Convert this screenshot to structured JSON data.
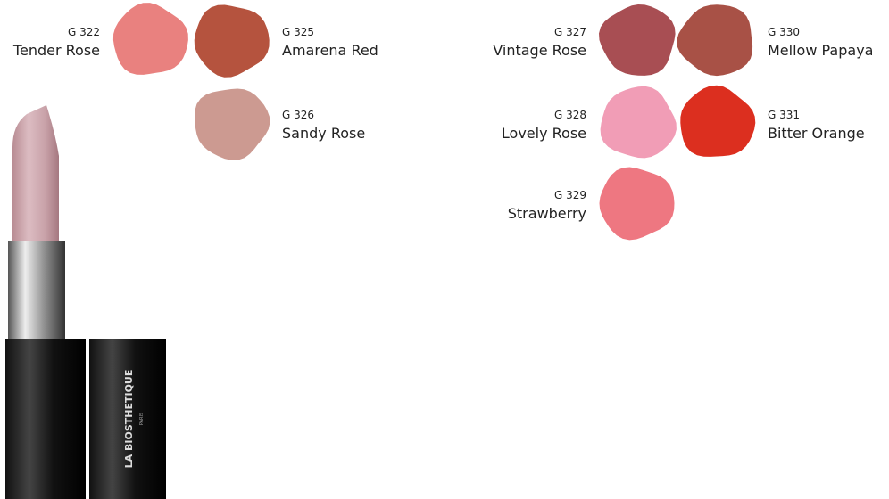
{
  "swatches": [
    {
      "code": "G 322",
      "name": "Tender Rose",
      "color": "#e9817f"
    },
    {
      "code": "G 325",
      "name": "Amarena Red",
      "color": "#b5533e"
    },
    {
      "code": "G 326",
      "name": "Sandy Rose",
      "color": "#cc9a91"
    },
    {
      "code": "G 327",
      "name": "Vintage Rose",
      "color": "#a84e53"
    },
    {
      "code": "G 330",
      "name": "Mellow Papaya",
      "color": "#a85146"
    },
    {
      "code": "G 328",
      "name": "Lovely Rose",
      "color": "#f19db6"
    },
    {
      "code": "G 331",
      "name": "Bitter Orange",
      "color": "#dc2f1f"
    },
    {
      "code": "G 329",
      "name": "Strawberry",
      "color": "#ee7781"
    }
  ],
  "product": {
    "brand": "LA BIOSTHETIQUE",
    "sub": "PARIS"
  }
}
